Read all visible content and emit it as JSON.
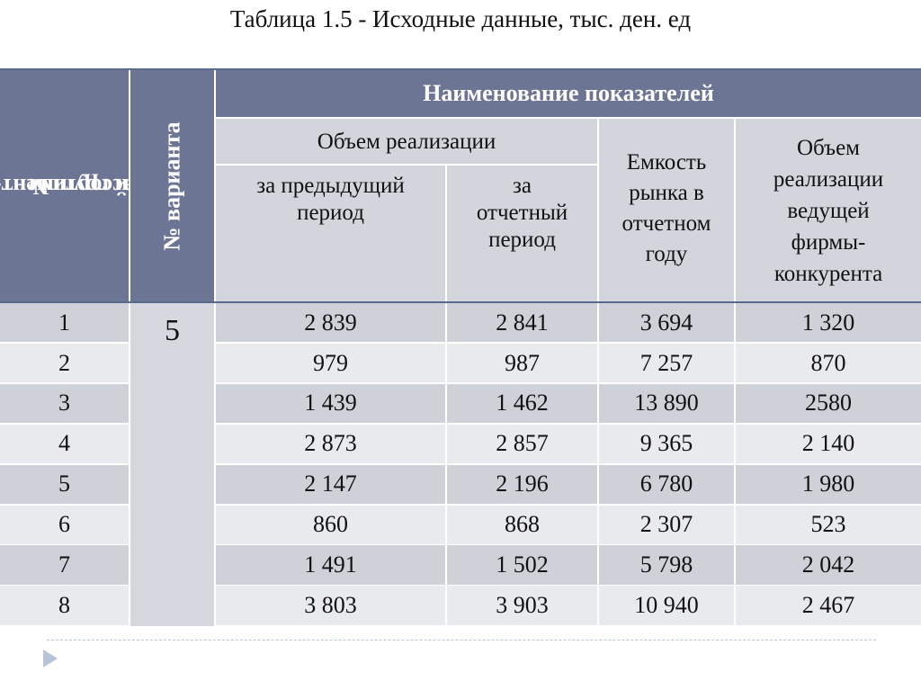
{
  "title": "Таблица 1.5 - Исходные данные, тыс. ден. ед",
  "headers": {
    "group_line1": "№",
    "group_line2": "ассортимент-",
    "group_line3": "ной группы",
    "variant": "№ варианта",
    "indicators": "Наименование показателей",
    "sales_volume": "Объем реализации",
    "prev_period_1": "за предыдущий",
    "prev_period_2": "период",
    "curr_period_1": "за",
    "curr_period_2": "отчетный",
    "curr_period_3": "период",
    "capacity_1": "Емкость",
    "capacity_2": "рынка в",
    "capacity_3": "отчетном",
    "capacity_4": "году",
    "leader_1": "Объем",
    "leader_2": "реализации",
    "leader_3": "ведущей",
    "leader_4": "фирмы-",
    "leader_5": "конкурента"
  },
  "variant_value": "5",
  "rows": [
    {
      "n": "1",
      "prev": "2 839",
      "curr": "2 841",
      "cap": "3 694",
      "lead": "1 320"
    },
    {
      "n": "2",
      "prev": "979",
      "curr": "987",
      "cap": "7 257",
      "lead": "870"
    },
    {
      "n": "3",
      "prev": "1 439",
      "curr": "1 462",
      "cap": "13 890",
      "lead": "2580"
    },
    {
      "n": "4",
      "prev": "2 873",
      "curr": "2 857",
      "cap": "9 365",
      "lead": "2 140"
    },
    {
      "n": "5",
      "prev": "2 147",
      "curr": "2 196",
      "cap": "6 780",
      "lead": "1 980"
    },
    {
      "n": "6",
      "prev": "860",
      "curr": "868",
      "cap": "2 307",
      "lead": "523"
    },
    {
      "n": "7",
      "prev": "1 491",
      "curr": "1 502",
      "cap": "5 798",
      "lead": "2 042"
    },
    {
      "n": "8",
      "prev": "3 803",
      "curr": "3 903",
      "cap": "10 940",
      "lead": "2 467"
    }
  ],
  "colors": {
    "header_dark": "#6d7595",
    "header_light": "#d3d5dd",
    "row_odd": "#cfd1d9",
    "row_even": "#e9eaee"
  },
  "nav": {
    "arrow_icon": "play-triangle-icon"
  }
}
